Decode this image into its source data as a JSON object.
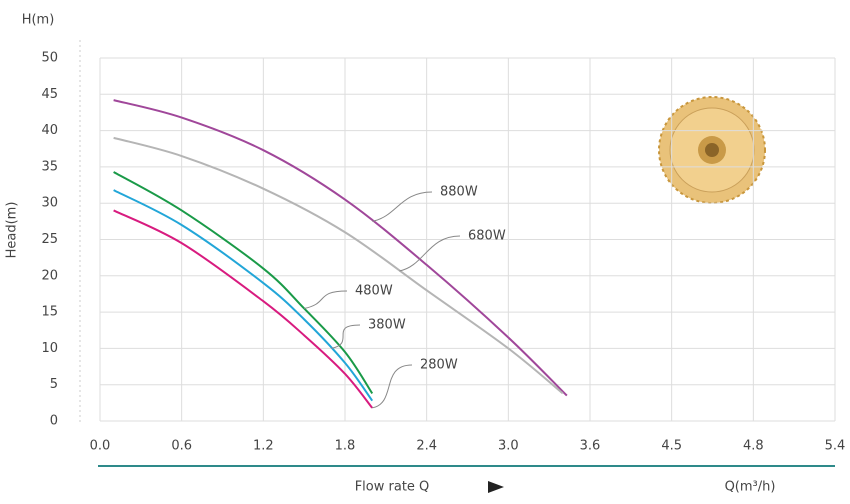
{
  "chart_data": {
    "type": "line",
    "ylabel_top": "H(m)",
    "ylabel": "Head(m)",
    "xlabel": "Flow rate Q",
    "xunit": "Q(m³/h)",
    "xlim": [
      0,
      5.4
    ],
    "ylim": [
      0,
      50
    ],
    "xticks": [
      {
        "value": 0,
        "label": "0.0"
      },
      0.6,
      1.2,
      1.8,
      2.4,
      {
        "value": 3,
        "label": "3.0"
      },
      3.6,
      4.5,
      4.8,
      5.4
    ],
    "yticks": [
      0,
      5,
      10,
      15,
      20,
      25,
      30,
      35,
      40,
      45,
      50
    ],
    "grid": true,
    "series": [
      {
        "name": "880W",
        "color": "#a0479a",
        "x": [
          0.1,
          0.6,
          1.2,
          1.8,
          2.4,
          3.0,
          3.43
        ],
        "values": [
          44.2,
          41.8,
          37.3,
          30.5,
          21.5,
          11.5,
          3.5
        ]
      },
      {
        "name": "680W",
        "color": "#b5b5b5",
        "x": [
          0.1,
          0.6,
          1.2,
          1.8,
          2.4,
          3.0,
          3.4
        ],
        "values": [
          39,
          36.5,
          32,
          26,
          18,
          10,
          3.8
        ]
      },
      {
        "name": "480W",
        "color": "#1a9a48",
        "x": [
          0.1,
          0.6,
          1.2,
          1.5,
          1.8,
          2.0
        ],
        "values": [
          34.3,
          29,
          21,
          15.5,
          9.5,
          3.8
        ]
      },
      {
        "name": "380W",
        "color": "#22a6d8",
        "x": [
          0.1,
          0.6,
          1.2,
          1.5,
          1.8,
          2.0
        ],
        "values": [
          31.8,
          27,
          19,
          14,
          8,
          2.8
        ]
      },
      {
        "name": "280W",
        "color": "#d81b7f",
        "x": [
          0.1,
          0.6,
          1.2,
          1.5,
          1.8,
          2.0
        ],
        "values": [
          29,
          24.5,
          16.5,
          11.8,
          6.5,
          1.8
        ]
      }
    ]
  }
}
